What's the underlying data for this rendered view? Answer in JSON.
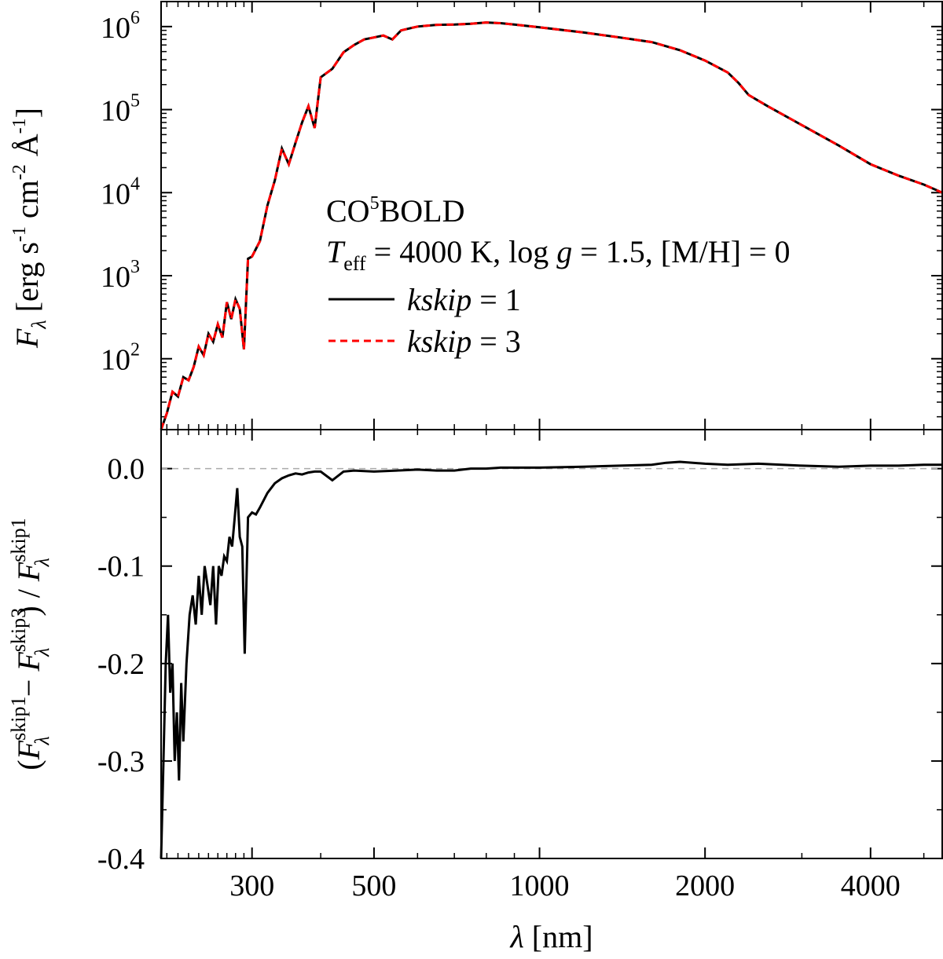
{
  "chart_data": [
    {
      "id": "flux",
      "type": "line",
      "y_scale": "log",
      "x_scale": "log",
      "ylabel": "F_λ [erg s^-1 cm^-2 Å^-1]",
      "ylabel_parts": {
        "symbol": "F",
        "sub": "λ",
        "unit_open": " [erg s",
        "s1": "-1",
        "cm": " cm",
        "s2": "-2",
        "ang": " Å",
        "s3": "-1",
        "close": "]"
      },
      "xlim": [
        205,
        5400
      ],
      "ylim": [
        14,
        2000000
      ],
      "y_ticks": [
        {
          "value": 100,
          "base": "10",
          "exp": "2"
        },
        {
          "value": 1000,
          "base": "10",
          "exp": "3"
        },
        {
          "value": 10000,
          "base": "10",
          "exp": "4"
        },
        {
          "value": 100000,
          "base": "10",
          "exp": "5"
        },
        {
          "value": 1000000,
          "base": "10",
          "exp": "6"
        }
      ],
      "annotation": {
        "model": {
          "a": "CO",
          "sup": "5",
          "b": "BOLD"
        },
        "params": {
          "t": "T",
          "tsub": "eff",
          "p1": " = 4000 K, log ",
          "g": "g",
          "p2": " = 1.5, [M/H] = 0"
        }
      },
      "series": [
        {
          "name": "kskip = 1",
          "label_italic": "kskip",
          "label_rest": " = 1",
          "color": "#000000",
          "dash": "solid",
          "x": [
            205,
            210,
            215,
            220,
            225,
            230,
            235,
            240,
            245,
            250,
            255,
            260,
            265,
            270,
            275,
            280,
            285,
            290,
            295,
            300,
            310,
            320,
            330,
            340,
            350,
            360,
            370,
            380,
            390,
            400,
            420,
            440,
            460,
            480,
            500,
            520,
            540,
            560,
            580,
            600,
            650,
            700,
            750,
            800,
            850,
            900,
            1000,
            1200,
            1400,
            1600,
            1800,
            2000,
            2200,
            2300,
            2400,
            2600,
            3000,
            3500,
            4000,
            4500,
            5000,
            5400
          ],
          "y": [
            14,
            22,
            40,
            35,
            60,
            55,
            80,
            140,
            110,
            200,
            160,
            260,
            180,
            480,
            300,
            520,
            400,
            130,
            1600,
            1700,
            2600,
            7000,
            14000,
            34000,
            22000,
            40000,
            70000,
            110000,
            60000,
            245000,
            310000,
            490000,
            600000,
            700000,
            740000,
            780000,
            700000,
            900000,
            950000,
            1000000,
            1050000,
            1060000,
            1080000,
            1120000,
            1100000,
            1060000,
            980000,
            850000,
            740000,
            650000,
            520000,
            390000,
            280000,
            210000,
            150000,
            110000,
            65000,
            37000,
            22000,
            16000,
            12500,
            10000
          ]
        },
        {
          "name": "kskip = 3",
          "label_italic": "kskip",
          "label_rest": " = 3",
          "color": "#ff0000",
          "dash": "dashed",
          "x": [
            205,
            210,
            215,
            220,
            225,
            230,
            235,
            240,
            245,
            250,
            255,
            260,
            265,
            270,
            275,
            280,
            285,
            290,
            295,
            300,
            310,
            320,
            330,
            340,
            350,
            360,
            370,
            380,
            390,
            400,
            420,
            440,
            460,
            480,
            500,
            520,
            540,
            560,
            580,
            600,
            650,
            700,
            750,
            800,
            850,
            900,
            1000,
            1200,
            1400,
            1600,
            1800,
            2000,
            2200,
            2300,
            2400,
            2600,
            3000,
            3500,
            4000,
            4500,
            5000,
            5400
          ],
          "y": [
            14,
            22,
            40,
            35,
            60,
            55,
            80,
            140,
            110,
            200,
            160,
            260,
            180,
            480,
            300,
            520,
            400,
            130,
            1600,
            1700,
            2600,
            7000,
            14000,
            34000,
            22000,
            40000,
            70000,
            110000,
            60000,
            245000,
            310000,
            490000,
            600000,
            700000,
            740000,
            780000,
            700000,
            900000,
            950000,
            1000000,
            1050000,
            1060000,
            1080000,
            1120000,
            1100000,
            1060000,
            980000,
            850000,
            740000,
            650000,
            520000,
            390000,
            280000,
            210000,
            150000,
            110000,
            65000,
            37000,
            22000,
            16000,
            12500,
            10000
          ]
        }
      ]
    },
    {
      "id": "residual",
      "type": "line",
      "x_scale": "log",
      "xlabel": "λ [nm]",
      "xlabel_parts": {
        "symbol": "λ",
        "rest": " [nm]"
      },
      "ylabel": "(F_λ^skip1 − F_λ^skip3) / F_λ^skip1",
      "ylabel_parts": {
        "open": "(",
        "f": "F",
        "lam": "λ",
        "sup1": "skip1",
        "minus": " − ",
        "sup3": "skip3",
        "close": ") / "
      },
      "xlim": [
        205,
        5400
      ],
      "ylim": [
        -0.4,
        0.04
      ],
      "x_ticks": [
        {
          "value": 300,
          "label": "300"
        },
        {
          "value": 500,
          "label": "500"
        },
        {
          "value": 1000,
          "label": "1000"
        },
        {
          "value": 2000,
          "label": "2000"
        },
        {
          "value": 4000,
          "label": "4000"
        }
      ],
      "y_ticks": [
        {
          "value": 0.0,
          "label": "0.0"
        },
        {
          "value": -0.1,
          "label": "-0.1"
        },
        {
          "value": -0.2,
          "label": "-0.2"
        },
        {
          "value": -0.3,
          "label": "-0.3"
        },
        {
          "value": -0.4,
          "label": "-0.4"
        }
      ],
      "reference_line": {
        "value": 0.0,
        "color": "#aaaaaa",
        "dash": "dashed"
      },
      "series": [
        {
          "name": "residual",
          "color": "#000000",
          "x": [
            205,
            207,
            209,
            211,
            213,
            215,
            217,
            219,
            221,
            223,
            225,
            228,
            231,
            234,
            237,
            240,
            243,
            246,
            249,
            252,
            255,
            258,
            261,
            264,
            267,
            270,
            273,
            276,
            279,
            282,
            285,
            288,
            291,
            295,
            300,
            305,
            310,
            320,
            330,
            340,
            350,
            360,
            370,
            380,
            390,
            400,
            420,
            440,
            460,
            500,
            550,
            600,
            650,
            700,
            750,
            800,
            850,
            900,
            1000,
            1200,
            1400,
            1600,
            1700,
            1800,
            2000,
            2200,
            2500,
            3000,
            3500,
            4000,
            4500,
            5000,
            5400
          ],
          "y": [
            -0.4,
            -0.3,
            -0.2,
            -0.15,
            -0.23,
            -0.2,
            -0.3,
            -0.25,
            -0.32,
            -0.22,
            -0.28,
            -0.2,
            -0.15,
            -0.13,
            -0.16,
            -0.11,
            -0.15,
            -0.1,
            -0.12,
            -0.14,
            -0.1,
            -0.16,
            -0.1,
            -0.11,
            -0.09,
            -0.095,
            -0.07,
            -0.08,
            -0.05,
            -0.02,
            -0.07,
            -0.08,
            -0.19,
            -0.05,
            -0.045,
            -0.047,
            -0.04,
            -0.025,
            -0.015,
            -0.01,
            -0.007,
            -0.005,
            -0.006,
            -0.004,
            -0.003,
            -0.003,
            -0.012,
            -0.003,
            -0.002,
            -0.003,
            -0.002,
            -0.001,
            -0.002,
            -0.002,
            0.0,
            0.0,
            0.001,
            0.001,
            0.001,
            0.002,
            0.003,
            0.004,
            0.006,
            0.007,
            0.005,
            0.004,
            0.005,
            0.003,
            0.002,
            0.003,
            0.003,
            0.004,
            0.004
          ]
        }
      ]
    }
  ]
}
